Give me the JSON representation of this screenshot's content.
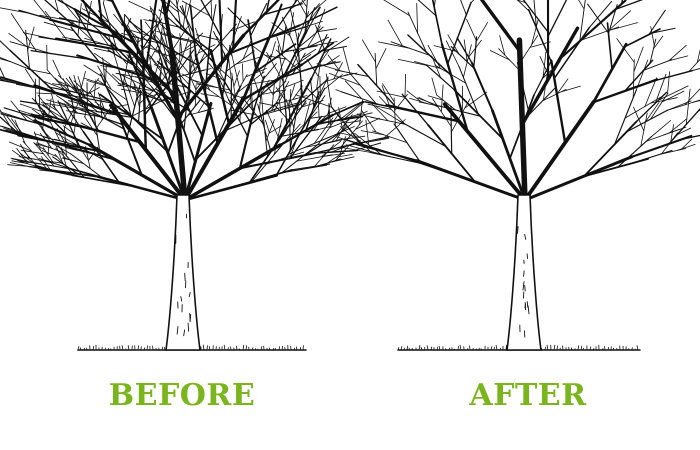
{
  "panels": [
    {
      "caption": "BEFORE"
    },
    {
      "caption": "AFTER"
    }
  ],
  "colors": {
    "ink": "#111111",
    "caption": "#7ab51d",
    "background": "#ffffff"
  }
}
